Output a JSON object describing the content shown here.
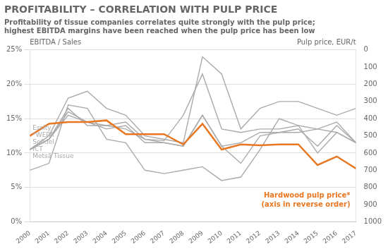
{
  "chart_data": {
    "type": "line",
    "title": "PROFITABILITY – CORRELATION WITH PULP PRICE",
    "subtitle": [
      "Profitability of tissue companies correlates quite strongly with the pulp price;",
      "highest EBITDA margins have been reached when the pulp price has been low"
    ],
    "ylabel": "EBITDA / Sales",
    "y2label": "Pulp price, EUR/t",
    "annotations": [
      "Hardwood pulp price*",
      "(axis in reverse order)"
    ],
    "x": [
      2000,
      2001,
      2002,
      2003,
      2004,
      2005,
      2006,
      2007,
      2008,
      2009,
      2010,
      2011,
      2012,
      2013,
      2014,
      2015,
      2016,
      2017
    ],
    "series": [
      {
        "name": "Essity",
        "color": "#aaaaaa",
        "values": [
          0.105,
          0.125,
          0.18,
          0.19,
          0.165,
          0.155,
          0.125,
          0.12,
          0.115,
          0.24,
          0.215,
          0.135,
          0.165,
          0.175,
          0.175,
          0.165,
          0.155,
          0.165
        ]
      },
      {
        "name": "*WEPA",
        "color": "#aaaaaa",
        "values": [
          0.105,
          0.12,
          0.165,
          0.14,
          0.14,
          0.145,
          0.12,
          0.118,
          0.155,
          0.215,
          0.135,
          0.13,
          0.135,
          0.135,
          0.14,
          0.135,
          0.145,
          0.115
        ]
      },
      {
        "name": "Sofidel",
        "color": "#aaaaaa",
        "values": [
          0.105,
          0.12,
          0.16,
          0.145,
          0.135,
          0.14,
          0.115,
          0.115,
          0.11,
          0.155,
          0.11,
          0.115,
          0.13,
          0.13,
          0.135,
          0.11,
          0.14,
          0.115
        ]
      },
      {
        "name": "ICT",
        "color": "#aaaaaa",
        "values": [
          0.105,
          0.12,
          0.155,
          0.145,
          0.14,
          0.135,
          0.12,
          0.115,
          0.11,
          0.155,
          0.11,
          0.085,
          0.125,
          0.13,
          0.13,
          0.135,
          0.13,
          0.115
        ]
      },
      {
        "name": "Metsä Tissue",
        "color": "#aaaaaa",
        "values": [
          0.075,
          0.085,
          0.17,
          0.165,
          0.12,
          0.115,
          0.075,
          0.07,
          0.075,
          0.08,
          0.06,
          0.065,
          0.105,
          0.15,
          0.14,
          0.1,
          0.13,
          0.115
        ]
      },
      {
        "color": "#E87722",
        "axis": "y2",
        "values": [
          500,
          430,
          420,
          420,
          410,
          490,
          490,
          490,
          550,
          430,
          580,
          550,
          555,
          550,
          550,
          670,
          620,
          690
        ]
      }
    ],
    "xlim": [
      2000,
      2017
    ],
    "xticks": [
      2000,
      2001,
      2002,
      2003,
      2004,
      2005,
      2006,
      2007,
      2008,
      2009,
      2010,
      2011,
      2012,
      2013,
      2014,
      2015,
      2016,
      2017
    ],
    "ylim": [
      0,
      0.25
    ],
    "yticks": [
      {
        "value": 0.0,
        "label": "0%"
      },
      {
        "value": 0.05,
        "label": "5%"
      },
      {
        "value": 0.1,
        "label": "10%"
      },
      {
        "value": 0.15,
        "label": "15%"
      },
      {
        "value": 0.2,
        "label": "20%"
      },
      {
        "value": 0.25,
        "label": "25%"
      }
    ],
    "y2lim": [
      1000,
      0
    ],
    "y2ticks": [
      0,
      100,
      200,
      300,
      400,
      500,
      600,
      700,
      800,
      900,
      1000
    ],
    "grid": true
  }
}
